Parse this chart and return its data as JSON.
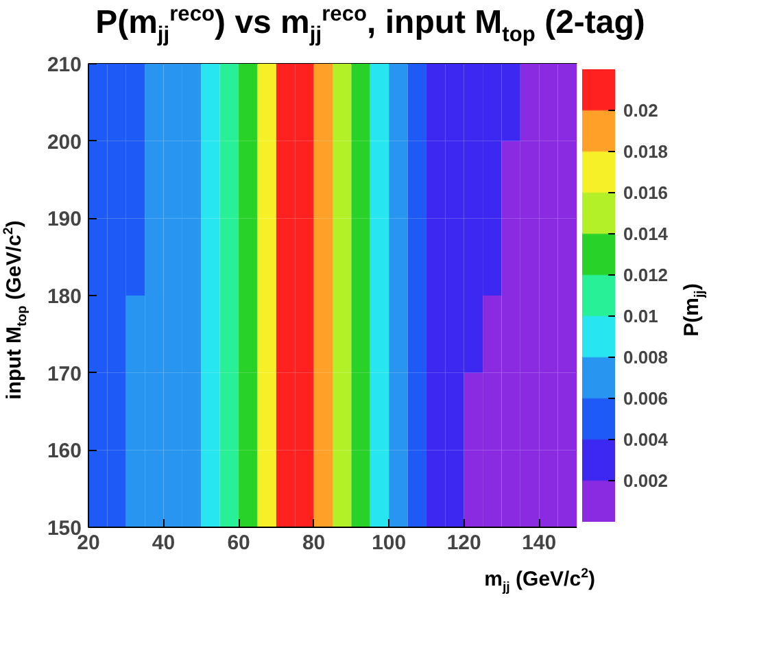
{
  "chart_data": {
    "type": "heatmap",
    "title": "P(m$_{jj}$$^{reco}$) vs m$_{jj}$$^{reco}$, input M$_{top}$ (2-tag)",
    "xlabel": "m$_{jj}$ (GeV/c$^{2}$)",
    "ylabel": "input M$_{top}$ (GeV/c$^{2}$)",
    "clabel": "P(m$_{jj}$)",
    "x": [
      22.5,
      27.5,
      32.5,
      37.5,
      42.5,
      47.5,
      52.5,
      57.5,
      62.5,
      67.5,
      72.5,
      77.5,
      82.5,
      87.5,
      92.5,
      97.5,
      102.5,
      107.5,
      112.5,
      117.5,
      122.5,
      127.5,
      132.5,
      137.5,
      142.5,
      147.5
    ],
    "xlim": [
      20,
      150
    ],
    "xticks": [
      20,
      40,
      60,
      80,
      100,
      120,
      140
    ],
    "ylim": [
      150,
      210
    ],
    "yticks": [
      150,
      160,
      170,
      180,
      190,
      200,
      210
    ],
    "clim": [
      0,
      0.022
    ],
    "cticks": [
      0.002,
      0.004,
      0.006,
      0.008,
      0.01,
      0.012,
      0.014,
      0.016,
      0.018,
      0.02
    ],
    "colors": [
      "#8a2be2",
      "#3c28f0",
      "#1e5af5",
      "#2896f0",
      "#28e6f0",
      "#28f096",
      "#28d228",
      "#b4f028",
      "#f5f028",
      "#ffa028",
      "#ff2020"
    ],
    "cells": [
      [
        0.005,
        0.005,
        0.005,
        0.007,
        0.007,
        0.007,
        0.009,
        0.011,
        0.013,
        0.017,
        0.021,
        0.021,
        0.019,
        0.015,
        0.012,
        0.009,
        0.006,
        0.004,
        0.003,
        0.003,
        0.003,
        0.003,
        0.003,
        0.001,
        0.001,
        0.001
      ],
      [
        0.005,
        0.005,
        0.005,
        0.007,
        0.007,
        0.007,
        0.009,
        0.011,
        0.013,
        0.017,
        0.021,
        0.021,
        0.019,
        0.015,
        0.012,
        0.009,
        0.006,
        0.004,
        0.003,
        0.003,
        0.003,
        0.003,
        0.001,
        0.001,
        0.001,
        0.001
      ],
      [
        0.005,
        0.005,
        0.005,
        0.007,
        0.007,
        0.007,
        0.009,
        0.011,
        0.013,
        0.017,
        0.021,
        0.021,
        0.019,
        0.015,
        0.012,
        0.009,
        0.006,
        0.004,
        0.003,
        0.003,
        0.003,
        0.003,
        0.001,
        0.001,
        0.001,
        0.001
      ],
      [
        0.005,
        0.005,
        0.007,
        0.007,
        0.007,
        0.007,
        0.009,
        0.011,
        0.013,
        0.017,
        0.021,
        0.021,
        0.019,
        0.015,
        0.012,
        0.009,
        0.006,
        0.004,
        0.003,
        0.003,
        0.003,
        0.001,
        0.001,
        0.001,
        0.001,
        0.001
      ],
      [
        0.005,
        0.005,
        0.007,
        0.007,
        0.007,
        0.007,
        0.009,
        0.011,
        0.013,
        0.017,
        0.021,
        0.021,
        0.019,
        0.015,
        0.012,
        0.009,
        0.006,
        0.004,
        0.003,
        0.003,
        0.001,
        0.001,
        0.001,
        0.001,
        0.001,
        0.001
      ],
      [
        0.005,
        0.005,
        0.007,
        0.007,
        0.007,
        0.007,
        0.009,
        0.011,
        0.013,
        0.017,
        0.021,
        0.021,
        0.019,
        0.015,
        0.012,
        0.009,
        0.006,
        0.004,
        0.003,
        0.003,
        0.001,
        0.001,
        0.001,
        0.001,
        0.001,
        0.001
      ]
    ]
  }
}
